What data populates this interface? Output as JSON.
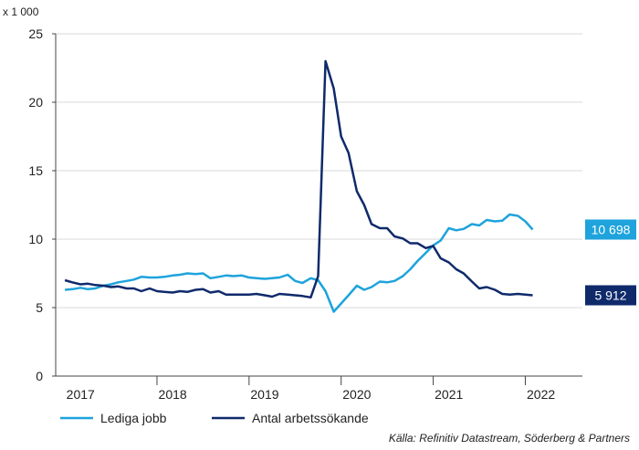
{
  "chart_data": {
    "type": "line",
    "unit_label": "x 1 000",
    "ylim": [
      0,
      25
    ],
    "yticks": [
      "0",
      "5",
      "10",
      "15",
      "20",
      "25"
    ],
    "xlim": [
      2016.9,
      2022.62
    ],
    "xticks": [
      {
        "label": "2017",
        "x": 2017.17
      },
      {
        "label": "2018",
        "x": 2018.17
      },
      {
        "label": "2019",
        "x": 2019.17
      },
      {
        "label": "2020",
        "x": 2020.17
      },
      {
        "label": "2021",
        "x": 2021.17
      },
      {
        "label": "2022",
        "x": 2022.17
      }
    ],
    "year_boundaries": [
      2018,
      2019,
      2020,
      2021,
      2022
    ],
    "grid": "horizontal",
    "legend_position": "bottom-left",
    "source": "Källa: Refinitiv Datastream, Söderberg & Partners",
    "series": [
      {
        "name": "Lediga jobb",
        "color": "#1ea3dc",
        "end_label": "10 698",
        "points": [
          [
            2017.0,
            6.3
          ],
          [
            2017.08,
            6.35
          ],
          [
            2017.17,
            6.45
          ],
          [
            2017.25,
            6.35
          ],
          [
            2017.33,
            6.4
          ],
          [
            2017.42,
            6.6
          ],
          [
            2017.5,
            6.7
          ],
          [
            2017.58,
            6.85
          ],
          [
            2017.67,
            6.95
          ],
          [
            2017.75,
            7.05
          ],
          [
            2017.83,
            7.25
          ],
          [
            2017.92,
            7.2
          ],
          [
            2018.0,
            7.2
          ],
          [
            2018.08,
            7.25
          ],
          [
            2018.17,
            7.35
          ],
          [
            2018.25,
            7.4
          ],
          [
            2018.33,
            7.5
          ],
          [
            2018.42,
            7.45
          ],
          [
            2018.5,
            7.5
          ],
          [
            2018.58,
            7.15
          ],
          [
            2018.67,
            7.25
          ],
          [
            2018.75,
            7.35
          ],
          [
            2018.83,
            7.3
          ],
          [
            2018.92,
            7.35
          ],
          [
            2019.0,
            7.2
          ],
          [
            2019.08,
            7.15
          ],
          [
            2019.17,
            7.1
          ],
          [
            2019.25,
            7.15
          ],
          [
            2019.33,
            7.2
          ],
          [
            2019.42,
            7.4
          ],
          [
            2019.5,
            6.95
          ],
          [
            2019.58,
            6.8
          ],
          [
            2019.67,
            7.15
          ],
          [
            2019.75,
            7.0
          ],
          [
            2019.83,
            6.2
          ],
          [
            2019.92,
            4.7
          ],
          [
            2020.0,
            5.3
          ],
          [
            2020.08,
            5.9
          ],
          [
            2020.17,
            6.6
          ],
          [
            2020.25,
            6.3
          ],
          [
            2020.33,
            6.5
          ],
          [
            2020.42,
            6.9
          ],
          [
            2020.5,
            6.85
          ],
          [
            2020.58,
            6.95
          ],
          [
            2020.67,
            7.3
          ],
          [
            2020.75,
            7.8
          ],
          [
            2020.83,
            8.4
          ],
          [
            2020.92,
            9.0
          ],
          [
            2021.0,
            9.55
          ],
          [
            2021.08,
            9.9
          ],
          [
            2021.17,
            10.8
          ],
          [
            2021.25,
            10.65
          ],
          [
            2021.33,
            10.75
          ],
          [
            2021.42,
            11.1
          ],
          [
            2021.5,
            11.0
          ],
          [
            2021.58,
            11.4
          ],
          [
            2021.67,
            11.3
          ],
          [
            2021.75,
            11.35
          ],
          [
            2021.83,
            11.8
          ],
          [
            2021.92,
            11.7
          ],
          [
            2022.0,
            11.3
          ],
          [
            2022.08,
            10.7
          ]
        ]
      },
      {
        "name": "Antal arbetssökande",
        "color": "#0f2a6b",
        "end_label": "5 912",
        "points": [
          [
            2017.0,
            7.0
          ],
          [
            2017.08,
            6.85
          ],
          [
            2017.17,
            6.7
          ],
          [
            2017.25,
            6.75
          ],
          [
            2017.33,
            6.65
          ],
          [
            2017.42,
            6.6
          ],
          [
            2017.5,
            6.5
          ],
          [
            2017.58,
            6.55
          ],
          [
            2017.67,
            6.4
          ],
          [
            2017.75,
            6.4
          ],
          [
            2017.83,
            6.2
          ],
          [
            2017.92,
            6.4
          ],
          [
            2018.0,
            6.2
          ],
          [
            2018.08,
            6.15
          ],
          [
            2018.17,
            6.1
          ],
          [
            2018.25,
            6.2
          ],
          [
            2018.33,
            6.15
          ],
          [
            2018.42,
            6.3
          ],
          [
            2018.5,
            6.35
          ],
          [
            2018.58,
            6.1
          ],
          [
            2018.67,
            6.2
          ],
          [
            2018.75,
            5.95
          ],
          [
            2018.83,
            5.95
          ],
          [
            2018.92,
            5.95
          ],
          [
            2019.0,
            5.95
          ],
          [
            2019.08,
            6.0
          ],
          [
            2019.17,
            5.9
          ],
          [
            2019.25,
            5.8
          ],
          [
            2019.33,
            6.0
          ],
          [
            2019.42,
            5.95
          ],
          [
            2019.5,
            5.9
          ],
          [
            2019.58,
            5.85
          ],
          [
            2019.67,
            5.75
          ],
          [
            2019.75,
            7.3
          ],
          [
            2019.83,
            23.0
          ],
          [
            2019.92,
            21.0
          ],
          [
            2020.0,
            17.5
          ],
          [
            2020.08,
            16.3
          ],
          [
            2020.17,
            13.5
          ],
          [
            2020.25,
            12.5
          ],
          [
            2020.33,
            11.1
          ],
          [
            2020.42,
            10.8
          ],
          [
            2020.5,
            10.8
          ],
          [
            2020.58,
            10.2
          ],
          [
            2020.67,
            10.05
          ],
          [
            2020.75,
            9.7
          ],
          [
            2020.83,
            9.7
          ],
          [
            2020.92,
            9.35
          ],
          [
            2021.0,
            9.5
          ],
          [
            2021.08,
            8.6
          ],
          [
            2021.17,
            8.3
          ],
          [
            2021.25,
            7.8
          ],
          [
            2021.33,
            7.5
          ],
          [
            2021.42,
            6.9
          ],
          [
            2021.5,
            6.4
          ],
          [
            2021.58,
            6.5
          ],
          [
            2021.67,
            6.3
          ],
          [
            2021.75,
            6.0
          ],
          [
            2021.83,
            5.95
          ],
          [
            2021.92,
            6.0
          ],
          [
            2022.0,
            5.95
          ],
          [
            2022.08,
            5.9
          ]
        ]
      }
    ]
  }
}
